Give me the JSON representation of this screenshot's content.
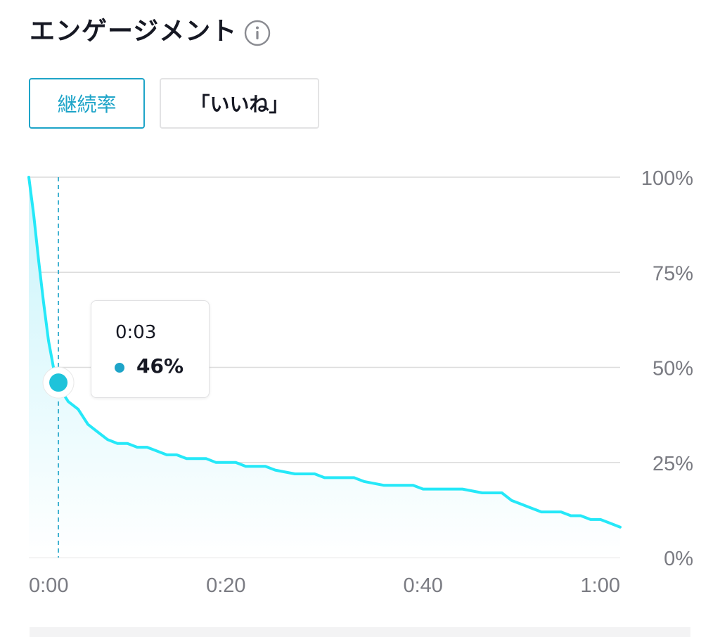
{
  "header": {
    "title": "エンゲージメント",
    "info_icon": "info-icon"
  },
  "tabs": [
    {
      "label": "継続率",
      "active": true
    },
    {
      "label": "「いいね」",
      "active": false
    }
  ],
  "colors": {
    "accent": "#1ea4c8",
    "line": "#25e8f8",
    "area_top": "#c8f4fb",
    "grid": "#dcdcdc",
    "axis_text": "#7a7b82",
    "text": "#161823"
  },
  "tooltip": {
    "time": "0:03",
    "value": "46%"
  },
  "chart_data": {
    "type": "area",
    "x_unit": "seconds",
    "xlim": [
      0,
      60
    ],
    "ylim": [
      0,
      100
    ],
    "x_ticks": [
      {
        "value": 0,
        "label": "0:00"
      },
      {
        "value": 20,
        "label": "0:20"
      },
      {
        "value": 40,
        "label": "0:40"
      },
      {
        "value": 60,
        "label": "1:00"
      }
    ],
    "y_ticks": [
      {
        "value": 100,
        "label": "100%"
      },
      {
        "value": 75,
        "label": "75%"
      },
      {
        "value": 50,
        "label": "50%"
      },
      {
        "value": 25,
        "label": "25%"
      },
      {
        "value": 0,
        "label": "0%"
      }
    ],
    "y_axis_position": "right",
    "grid": true,
    "highlight": {
      "x": 3,
      "y": 46
    },
    "series": [
      {
        "points": [
          [
            0,
            100
          ],
          [
            0.5,
            90
          ],
          [
            1,
            78
          ],
          [
            1.5,
            67
          ],
          [
            2,
            57
          ],
          [
            2.5,
            50
          ],
          [
            3,
            46
          ],
          [
            3.5,
            43
          ],
          [
            4,
            41
          ],
          [
            4.5,
            40
          ],
          [
            5,
            39
          ],
          [
            5.5,
            37
          ],
          [
            6,
            35
          ],
          [
            6.5,
            34
          ],
          [
            7,
            33
          ],
          [
            8,
            31
          ],
          [
            9,
            30
          ],
          [
            10,
            30
          ],
          [
            11,
            29
          ],
          [
            12,
            29
          ],
          [
            13,
            28
          ],
          [
            14,
            27
          ],
          [
            15,
            27
          ],
          [
            16,
            26
          ],
          [
            18,
            26
          ],
          [
            19,
            25
          ],
          [
            21,
            25
          ],
          [
            22,
            24
          ],
          [
            24,
            24
          ],
          [
            25,
            23
          ],
          [
            27,
            22
          ],
          [
            29,
            22
          ],
          [
            30,
            21
          ],
          [
            33,
            21
          ],
          [
            34,
            20
          ],
          [
            36,
            19
          ],
          [
            39,
            19
          ],
          [
            40,
            18
          ],
          [
            44,
            18
          ],
          [
            46,
            17
          ],
          [
            48,
            17
          ],
          [
            49,
            15
          ],
          [
            50,
            14
          ],
          [
            51,
            13
          ],
          [
            52,
            12
          ],
          [
            54,
            12
          ],
          [
            55,
            11
          ],
          [
            56,
            11
          ],
          [
            57,
            10
          ],
          [
            58,
            10
          ],
          [
            59,
            9
          ],
          [
            60,
            8
          ]
        ]
      }
    ]
  },
  "footer": {}
}
